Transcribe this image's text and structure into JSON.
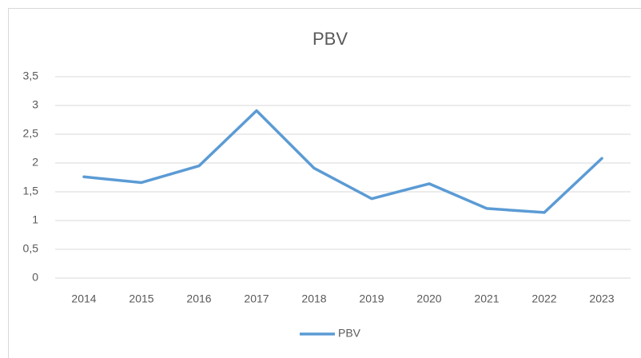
{
  "chart_data": {
    "type": "line",
    "title": "PBV",
    "categories": [
      "2014",
      "2015",
      "2016",
      "2017",
      "2018",
      "2019",
      "2020",
      "2021",
      "2022",
      "2023"
    ],
    "series": [
      {
        "name": "PBV",
        "color": "#5b9bd5",
        "values": [
          1.76,
          1.66,
          1.95,
          2.91,
          1.91,
          1.38,
          1.64,
          1.21,
          1.14,
          2.08
        ]
      }
    ],
    "ylim": [
      0,
      3.5
    ],
    "yticks": [
      0,
      {
        "value": 0.5,
        "label": "0,5"
      },
      1,
      {
        "value": 1.5,
        "label": "1,5"
      },
      2,
      {
        "value": 2.5,
        "label": "2,5"
      },
      3,
      {
        "value": 3.5,
        "label": "3,5"
      }
    ],
    "grid": true,
    "legend": "bottom"
  }
}
